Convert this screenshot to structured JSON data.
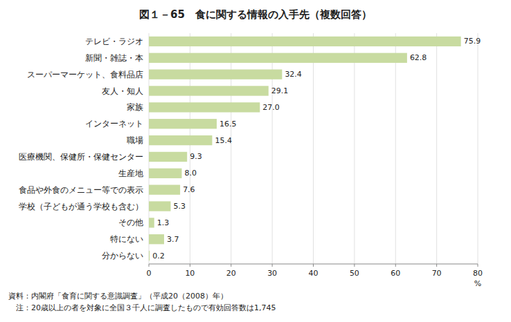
{
  "chart_data": {
    "type": "bar",
    "orientation": "horizontal",
    "title": "図１－65　食に関する情報の入手先（複数回答）",
    "categories": [
      "テレビ・ラジオ",
      "新聞・雑誌・本",
      "スーパーマーケット、食料品店",
      "友人・知人",
      "家族",
      "インターネット",
      "職場",
      "医療機関、保健所・保健センター",
      "生産地",
      "食品や外食のメニュー等での表示",
      "学校（子どもが通う学校も含む）",
      "その他",
      "特にない",
      "分からない"
    ],
    "values": [
      75.9,
      62.8,
      32.4,
      29.1,
      27.0,
      16.5,
      15.4,
      9.3,
      8.0,
      7.6,
      5.3,
      1.3,
      3.7,
      0.2
    ],
    "value_labels": [
      "75.9",
      "62.8",
      "32.4",
      "29.1",
      "27.0",
      "16.5",
      "15.4",
      "9.3",
      "8.0",
      "7.6",
      "5.3",
      "1.3",
      "3.7",
      "0.2"
    ],
    "data_labels": true,
    "color": "#c8dba0",
    "xlabel": "%",
    "xlim": [
      0,
      80
    ],
    "xticks": [
      0,
      10,
      20,
      30,
      40,
      50,
      60,
      70,
      80
    ],
    "grid": true,
    "annotations": [
      "資料：内閣府「食育に関する意識調査」（平成20（2008）年）",
      "　注：20歳以上の者を対象に全国３千人に調査したもので有効回答数は1,745"
    ]
  }
}
